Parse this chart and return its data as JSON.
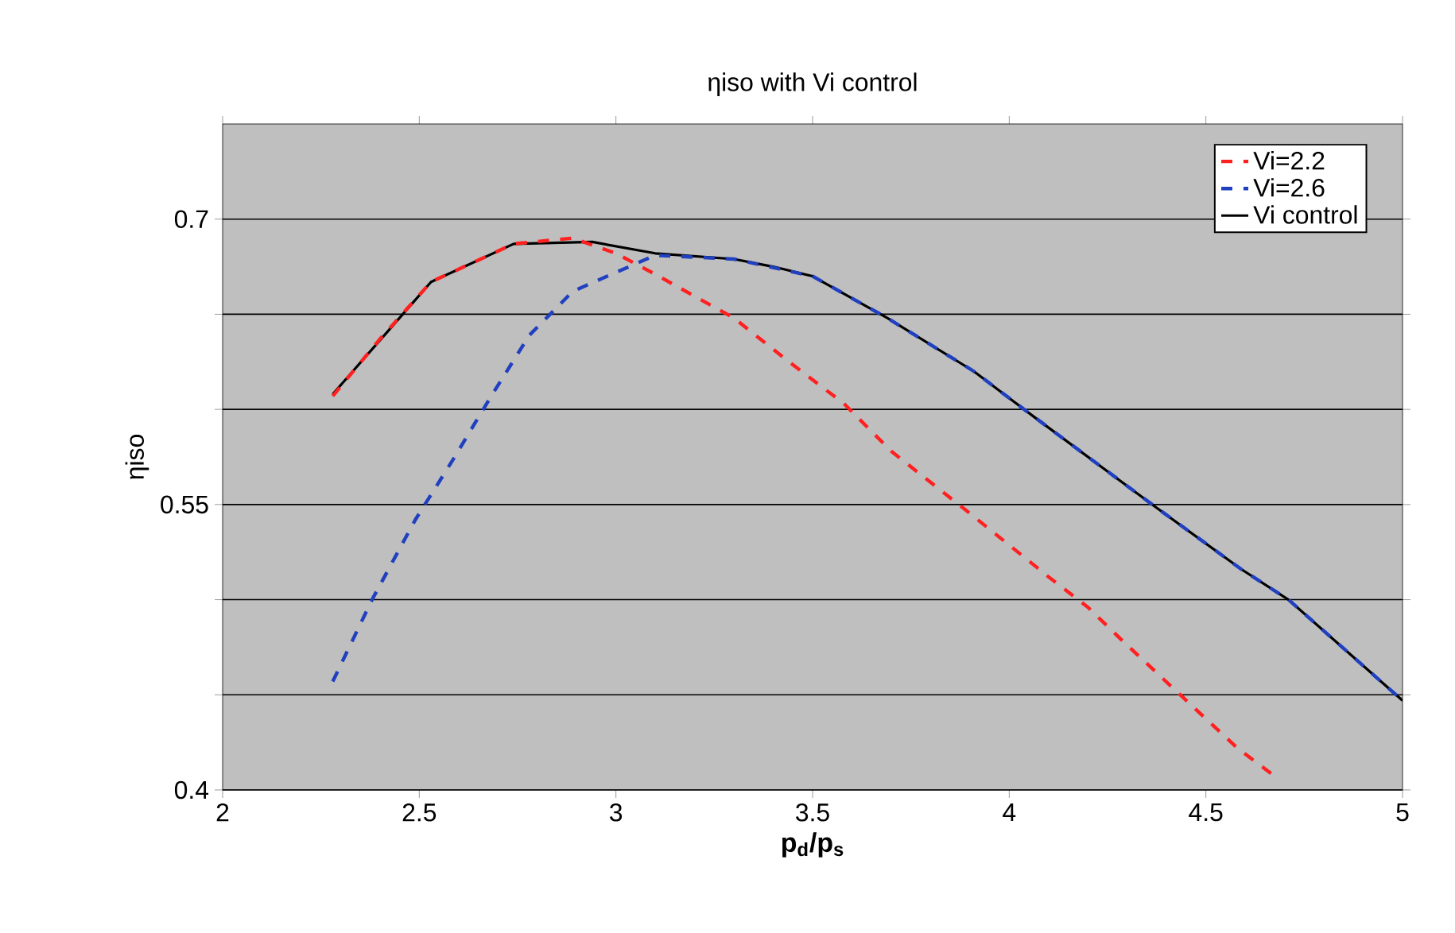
{
  "chart_data": {
    "type": "line",
    "title": "ηiso with Vi control",
    "xlabel": "p$_{d}$/p$_{s}$",
    "ylabel": "ηiso",
    "xlim": [
      2,
      5
    ],
    "xticks": [
      2,
      2.5,
      3,
      3.5,
      4,
      4.5,
      5
    ],
    "ylim": [
      0.4,
      0.75
    ],
    "yticks": [
      0.4,
      {
        "value": 0.45,
        "label": null
      },
      {
        "value": 0.5,
        "label": null
      },
      0.55,
      {
        "value": 0.6,
        "label": null
      },
      {
        "value": 0.65,
        "label": null
      },
      0.7
    ],
    "grid": "y",
    "legend": "top right",
    "marker": "none",
    "series": [
      {
        "name": "Vi=2.2",
        "color": "#ff2020",
        "line_style": "dashed",
        "x": [
          2.28,
          2.4,
          2.53,
          2.74,
          2.89,
          3.0,
          3.1,
          3.3,
          3.44,
          3.58,
          3.7,
          3.89,
          4.1,
          4.2,
          4.29,
          4.44,
          4.58,
          4.67
        ],
        "values": [
          0.607,
          0.637,
          0.667,
          0.687,
          0.69,
          0.682,
          0.671,
          0.648,
          0.625,
          0.603,
          0.578,
          0.547,
          0.512,
          0.496,
          0.478,
          0.449,
          0.422,
          0.408
        ]
      },
      {
        "name": "Vi=2.6",
        "color": "#2040c0",
        "line_style": "dashed",
        "x": [
          2.28,
          2.38,
          2.49,
          2.59,
          2.68,
          2.78,
          2.89,
          3.0,
          3.1,
          3.3,
          3.5,
          3.69,
          3.91,
          4.07,
          4.37,
          4.59,
          4.71,
          5.0
        ],
        "values": [
          0.457,
          0.5,
          0.542,
          0.575,
          0.606,
          0.639,
          0.662,
          0.672,
          0.681,
          0.679,
          0.67,
          0.648,
          0.62,
          0.595,
          0.549,
          0.516,
          0.5,
          0.447
        ]
      },
      {
        "name": "Vi control",
        "color": "#000000",
        "line_style": "solid",
        "x": [
          2.28,
          2.53,
          2.74,
          2.94,
          3.1,
          3.3,
          3.4,
          3.5,
          3.69,
          3.91,
          4.07,
          4.37,
          4.59,
          4.71,
          5.0
        ],
        "values": [
          0.608,
          0.667,
          0.687,
          0.688,
          0.682,
          0.679,
          0.675,
          0.67,
          0.648,
          0.62,
          0.595,
          0.549,
          0.516,
          0.5,
          0.447
        ]
      }
    ]
  }
}
